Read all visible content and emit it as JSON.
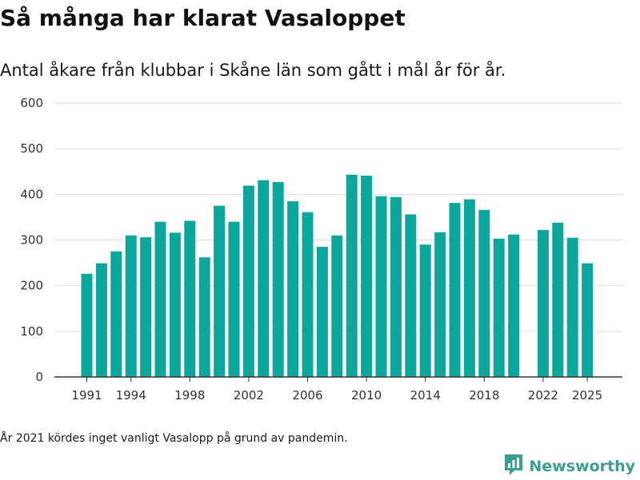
{
  "title": "Så många har klarat Vasaloppet",
  "subtitle": "Antal åkare från klubbar i Skåne län som gått i mål år för år.",
  "footnote": "År 2021 kördes inget vanligt Vasalopp på grund av pandemin.",
  "brand": {
    "name": "Newsworthy",
    "icon": "newsworthy-logo-icon",
    "color": "#3a9e94"
  },
  "chart_data": {
    "type": "bar",
    "bar_color": "#0da69c",
    "grid": true,
    "xlim": [
      1991,
      2025
    ],
    "ylim": [
      0,
      600
    ],
    "y_ticks": [
      0,
      100,
      200,
      300,
      400,
      500,
      600
    ],
    "x_ticks": [
      1991,
      1994,
      1998,
      2002,
      2006,
      2010,
      2014,
      2018,
      2022,
      2025
    ],
    "categories": [
      1991,
      1992,
      1993,
      1994,
      1995,
      1996,
      1997,
      1998,
      1999,
      2000,
      2001,
      2002,
      2003,
      2004,
      2005,
      2006,
      2007,
      2008,
      2009,
      2010,
      2011,
      2012,
      2013,
      2014,
      2015,
      2016,
      2017,
      2018,
      2019,
      2020,
      2021,
      2022,
      2023,
      2024,
      2025
    ],
    "values": [
      226,
      249,
      275,
      310,
      306,
      340,
      316,
      342,
      262,
      375,
      340,
      419,
      431,
      427,
      385,
      361,
      285,
      310,
      443,
      441,
      396,
      394,
      356,
      290,
      317,
      381,
      389,
      366,
      303,
      312,
      null,
      322,
      338,
      305,
      249
    ]
  }
}
